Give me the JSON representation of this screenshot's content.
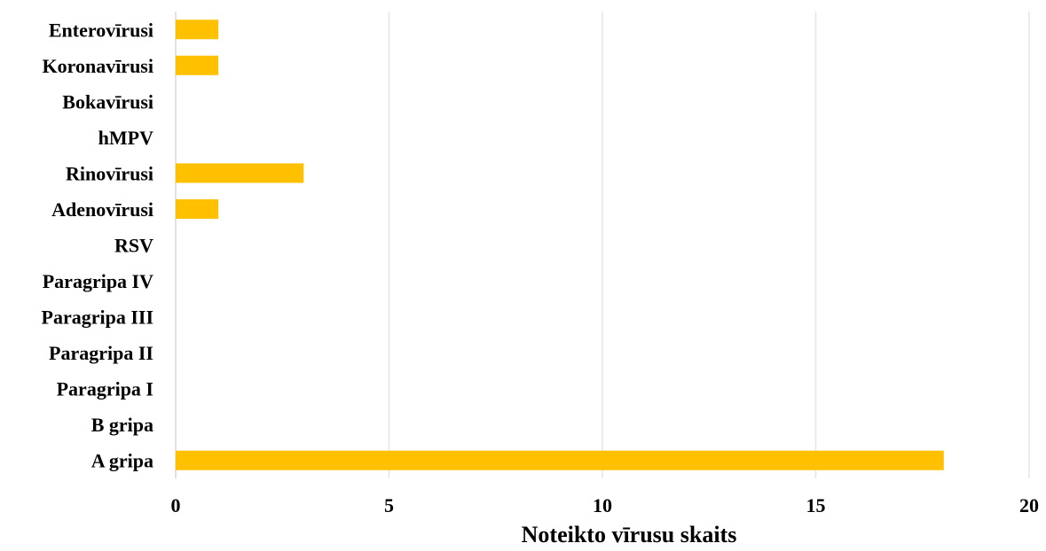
{
  "chart_data": {
    "type": "bar",
    "orientation": "horizontal",
    "categories": [
      "Enterovīrusi",
      "Koronavīrusi",
      "Bokavīrusi",
      "hMPV",
      "Rinovīrusi",
      "Adenovīrusi",
      "RSV",
      "Paragripa IV",
      "Paragripa III",
      "Paragripa II",
      "Paragripa I",
      "B gripa",
      "A gripa"
    ],
    "values": [
      1,
      1,
      0,
      0,
      3,
      1,
      0,
      0,
      0,
      0,
      0,
      0,
      18
    ],
    "xlabel": "Noteikto vīrusu skaits",
    "ylabel": "",
    "xlim": [
      0,
      20
    ],
    "xticks": [
      0,
      5,
      10,
      15,
      20
    ],
    "grid": true,
    "bar_color": "#ffc000",
    "gridline_color": "#e6e6e6"
  }
}
